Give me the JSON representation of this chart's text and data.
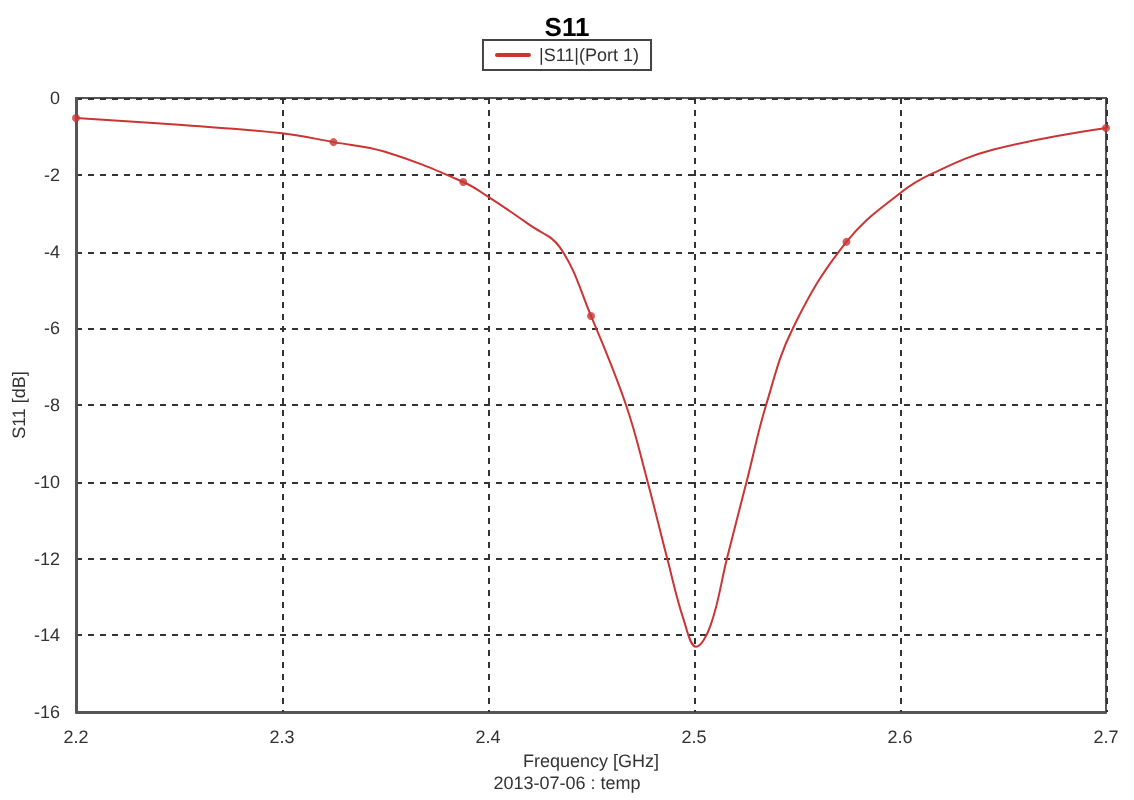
{
  "chart_data": {
    "type": "line",
    "title": "S11",
    "xlabel": "Frequency [GHz]",
    "ylabel": "S11 [dB]",
    "annotations": [
      "2013-07-06 : temp"
    ],
    "xlim": [
      2.2,
      2.7
    ],
    "xticks": [
      2.2,
      2.3,
      2.4,
      2.5,
      2.6,
      2.7
    ],
    "ylim": [
      -16,
      0
    ],
    "yticks": [
      -16,
      -14,
      -12,
      -10,
      -8,
      -6,
      -4,
      -2,
      0
    ],
    "grid": true,
    "legend": "top",
    "line_style": "solid",
    "series": [
      {
        "name": "|S11|(Port 1)",
        "color": "#cc3333",
        "marker": "none",
        "x": [
          2.2,
          2.25,
          2.3,
          2.325,
          2.35,
          2.388,
          2.4,
          2.42,
          2.435,
          2.45,
          2.467,
          2.477,
          2.487,
          2.495,
          2.501,
          2.508,
          2.516,
          2.526,
          2.535,
          2.548,
          2.574,
          2.6,
          2.616,
          2.645,
          2.7
        ],
        "values": [
          -0.52,
          -0.7,
          -0.92,
          -1.15,
          -1.4,
          -2.19,
          -2.57,
          -3.3,
          -3.9,
          -5.68,
          -8.0,
          -9.9,
          -12.0,
          -13.6,
          -14.3,
          -13.75,
          -12.0,
          -9.9,
          -8.0,
          -6.0,
          -3.75,
          -2.48,
          -1.96,
          -1.35,
          -0.78
        ]
      },
      {
        "type": "scatter",
        "color": "#cc3333",
        "marker": "circle",
        "x": [
          2.2,
          2.325,
          2.388,
          2.45,
          2.574,
          2.7
        ],
        "values": [
          -0.52,
          -1.15,
          -2.19,
          -5.68,
          -3.75,
          -0.78
        ]
      }
    ]
  }
}
